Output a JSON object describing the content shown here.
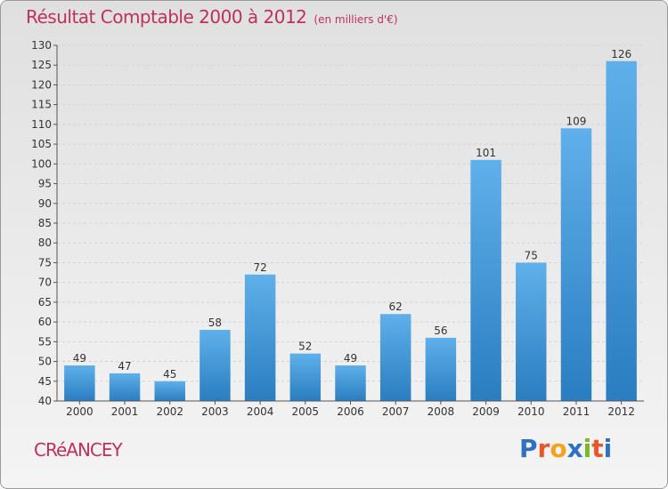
{
  "header": {
    "title": "Résultat Comptable 2000 à 2012",
    "subtitle": "(en milliers d'€)"
  },
  "footer": {
    "town": "CRéANCEY",
    "logo": {
      "letters": [
        "P",
        "r",
        "o",
        "x",
        "i",
        "t",
        "i"
      ],
      "colors": [
        "#2f6fc4",
        "#e8562a",
        "#f2a31b",
        "#2f6fc4",
        "#7ab828",
        "#e8562a",
        "#2f6fc4"
      ]
    }
  },
  "colors": {
    "bar_top": "#5fb0ea",
    "bar_bottom": "#2a7dc0",
    "accent": "#c0305a",
    "axis": "#555555"
  },
  "chart_data": {
    "type": "bar",
    "title": "Résultat Comptable 2000 à 2012",
    "subtitle": "(en milliers d'€)",
    "categories": [
      "2000",
      "2001",
      "2002",
      "2003",
      "2004",
      "2005",
      "2006",
      "2007",
      "2008",
      "2009",
      "2010",
      "2011",
      "2012"
    ],
    "values": [
      49,
      47,
      45,
      58,
      72,
      52,
      49,
      62,
      56,
      101,
      75,
      109,
      126
    ],
    "ylim": [
      40,
      130
    ],
    "yticks": [
      40,
      45,
      50,
      55,
      60,
      65,
      70,
      75,
      80,
      85,
      90,
      95,
      100,
      105,
      110,
      115,
      120,
      125,
      130
    ],
    "grid": true,
    "data_labels": true
  }
}
